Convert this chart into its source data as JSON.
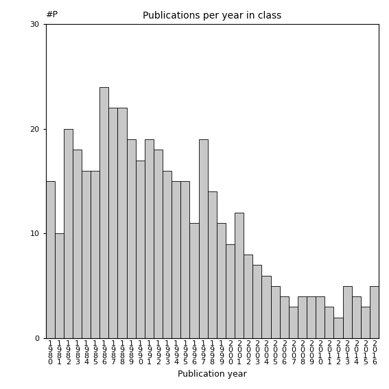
{
  "title": "Publications per year in class",
  "xlabel": "Publication year",
  "ylabel": "#P",
  "bar_color": "#c8c8c8",
  "bar_edgecolor": "#000000",
  "ylim": [
    0,
    30
  ],
  "yticks": [
    0,
    10,
    20,
    30
  ],
  "years": [
    1980,
    1981,
    1982,
    1983,
    1984,
    1985,
    1986,
    1987,
    1988,
    1989,
    1990,
    1991,
    1992,
    1993,
    1994,
    1995,
    1996,
    1997,
    1998,
    1999,
    2000,
    2001,
    2002,
    2003,
    2004,
    2005,
    2006,
    2007,
    2008,
    2009,
    2010,
    2011,
    2012,
    2013,
    2014,
    2015,
    2016
  ],
  "values": [
    15,
    10,
    20,
    18,
    16,
    16,
    24,
    22,
    22,
    19,
    17,
    19,
    18,
    16,
    15,
    15,
    11,
    19,
    14,
    11,
    9,
    12,
    8,
    7,
    6,
    5,
    4,
    3,
    4,
    4,
    4,
    3,
    2,
    5,
    4,
    3,
    5
  ],
  "figsize": [
    5.67,
    5.67
  ],
  "dpi": 100,
  "title_fontsize": 10,
  "label_fontsize": 9,
  "tick_fontsize": 8
}
